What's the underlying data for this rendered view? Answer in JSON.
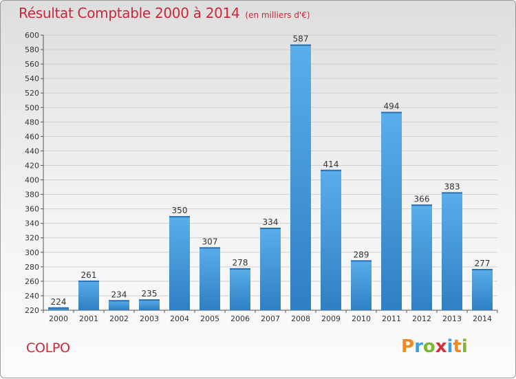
{
  "header": {
    "title": "Résultat Comptable 2000 à 2014",
    "subtitle": "(en milliers d'€)"
  },
  "footer": {
    "commune": "COLPO",
    "logo_letters": [
      "P",
      "r",
      "o",
      "x",
      "i",
      "t",
      "i"
    ],
    "logo_colors": [
      "#f08a1c",
      "#3f9fd9",
      "#7cb82f",
      "#d2303b",
      "#3f9fd9",
      "#f08a1c",
      "#7cb82f"
    ]
  },
  "chart_data": {
    "type": "bar",
    "categories": [
      "2000",
      "2001",
      "2002",
      "2003",
      "2004",
      "2005",
      "2006",
      "2007",
      "2008",
      "2009",
      "2010",
      "2011",
      "2012",
      "2013",
      "2014"
    ],
    "values": [
      224,
      261,
      234,
      235,
      350,
      307,
      278,
      334,
      587,
      414,
      289,
      494,
      366,
      383,
      277
    ],
    "ylim": [
      220,
      600
    ],
    "ytick_step": 20,
    "grid": true,
    "bar_color": "#4a9de0",
    "title": "Résultat Comptable 2000 à 2014",
    "xlabel": "",
    "ylabel": ""
  }
}
